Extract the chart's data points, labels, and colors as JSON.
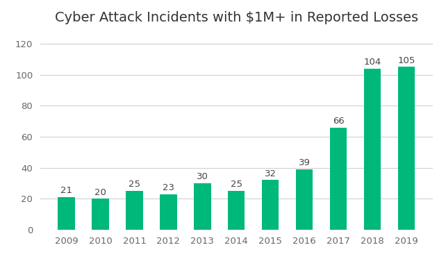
{
  "title": "Cyber Attack Incidents with $1M+ in Reported Losses",
  "categories": [
    "2009",
    "2010",
    "2011",
    "2012",
    "2013",
    "2014",
    "2015",
    "2016",
    "2017",
    "2018",
    "2019"
  ],
  "values": [
    21,
    20,
    25,
    23,
    30,
    25,
    32,
    39,
    66,
    104,
    105
  ],
  "bar_color": "#00b87a",
  "ylim": [
    0,
    128
  ],
  "yticks": [
    0,
    20,
    40,
    60,
    80,
    100,
    120
  ],
  "title_fontsize": 14,
  "label_fontsize": 9.5,
  "tick_fontsize": 9.5,
  "background_color": "#ffffff",
  "grid_color": "#d0d0d0",
  "bar_width": 0.5
}
